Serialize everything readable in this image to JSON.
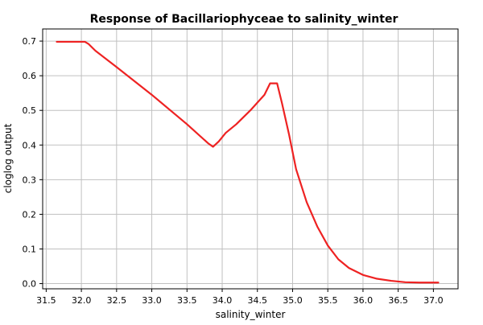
{
  "chart_data": {
    "type": "line",
    "title": "Response of Bacillariophyceae to salinity_winter",
    "xlabel": "salinity_winter",
    "ylabel": "cloglog output",
    "xlim": [
      31.45,
      37.35
    ],
    "ylim": [
      -0.015,
      0.735
    ],
    "xticks": [
      31.5,
      32.0,
      32.5,
      33.0,
      33.5,
      34.0,
      34.5,
      35.0,
      35.5,
      36.0,
      36.5,
      37.0
    ],
    "xtick_labels": [
      "31.5",
      "32.0",
      "32.5",
      "33.0",
      "33.5",
      "34.0",
      "34.5",
      "35.0",
      "35.5",
      "36.0",
      "36.5",
      "37.0"
    ],
    "yticks": [
      0.0,
      0.1,
      0.2,
      0.3,
      0.4,
      0.5,
      0.6,
      0.7
    ],
    "ytick_labels": [
      "0.0",
      "0.1",
      "0.2",
      "0.3",
      "0.4",
      "0.5",
      "0.6",
      "0.7"
    ],
    "grid": true,
    "legend": "none",
    "series": [
      {
        "color": "#ee2222",
        "x": [
          31.65,
          32.05,
          32.1,
          32.2,
          32.5,
          33.0,
          33.5,
          33.8,
          33.87,
          33.95,
          34.05,
          34.2,
          34.4,
          34.6,
          34.68,
          34.78,
          34.85,
          34.95,
          35.05,
          35.2,
          35.35,
          35.5,
          35.65,
          35.8,
          36.0,
          36.2,
          36.4,
          36.6,
          36.8,
          37.0,
          37.07
        ],
        "y": [
          0.698,
          0.698,
          0.692,
          0.672,
          0.625,
          0.545,
          0.46,
          0.405,
          0.395,
          0.41,
          0.435,
          0.46,
          0.5,
          0.545,
          0.578,
          0.578,
          0.52,
          0.43,
          0.33,
          0.235,
          0.165,
          0.11,
          0.07,
          0.045,
          0.025,
          0.014,
          0.008,
          0.004,
          0.003,
          0.003,
          0.003
        ]
      }
    ]
  }
}
